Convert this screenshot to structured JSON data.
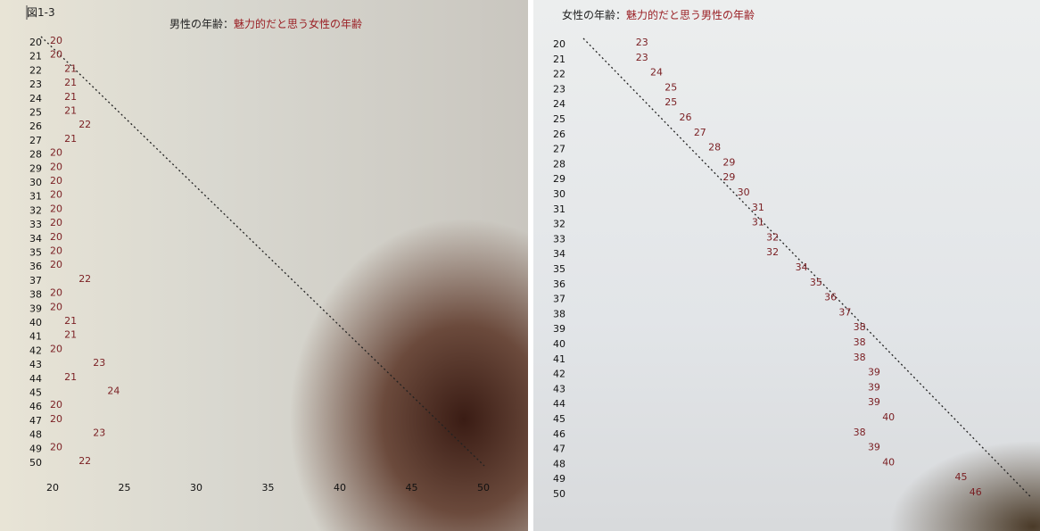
{
  "chart_data": [
    {
      "type": "table",
      "figure_label": "図1-3",
      "title_prefix": "男性の年齢：",
      "title_highlight": "魅力的だと思う女性の年齢",
      "x": [
        20,
        21,
        22,
        23,
        24,
        25,
        26,
        27,
        28,
        29,
        30,
        31,
        32,
        33,
        34,
        35,
        36,
        37,
        38,
        39,
        40,
        41,
        42,
        43,
        44,
        45,
        46,
        47,
        48,
        49,
        50
      ],
      "values": [
        20,
        20,
        21,
        21,
        21,
        21,
        22,
        21,
        20,
        20,
        20,
        20,
        20,
        20,
        20,
        20,
        20,
        22,
        20,
        20,
        21,
        21,
        20,
        23,
        21,
        24,
        20,
        20,
        23,
        20,
        22
      ],
      "x_ticks": [
        20,
        25,
        30,
        35,
        40,
        45,
        50
      ],
      "reference_line": "diagonal dotted (same age)",
      "value_color": "#7a1e22"
    },
    {
      "type": "table",
      "title_prefix": "女性の年齢：",
      "title_highlight": "魅力的だと思う男性の年齢",
      "x": [
        20,
        21,
        22,
        23,
        24,
        25,
        26,
        27,
        28,
        29,
        30,
        31,
        32,
        33,
        34,
        35,
        36,
        37,
        38,
        39,
        40,
        41,
        42,
        43,
        44,
        45,
        46,
        47,
        48,
        49,
        50
      ],
      "values": [
        23,
        23,
        24,
        25,
        25,
        26,
        27,
        28,
        29,
        29,
        30,
        31,
        31,
        32,
        32,
        34,
        35,
        36,
        37,
        38,
        38,
        38,
        39,
        39,
        39,
        40,
        38,
        39,
        40,
        45,
        46
      ],
      "reference_line": "diagonal dotted (same age)",
      "value_color": "#7a1e22"
    }
  ]
}
